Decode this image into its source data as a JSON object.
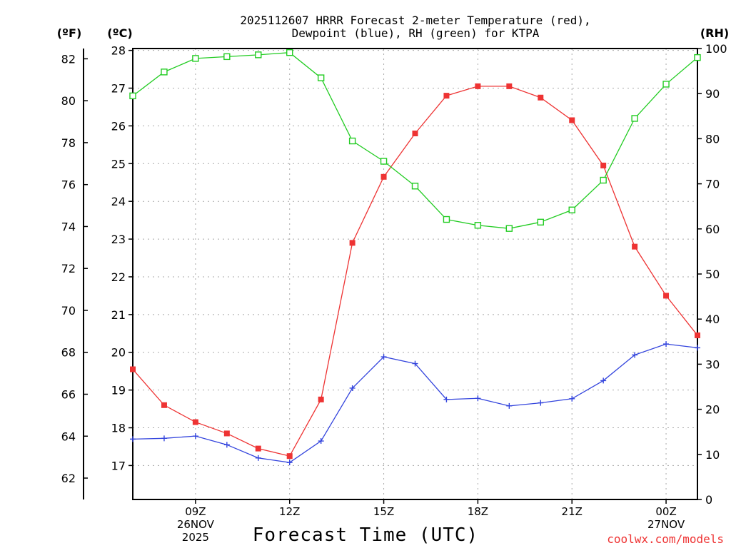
{
  "chart_data": {
    "type": "line",
    "title": [
      "2025112607 HRRR Forecast 2-meter Temperature (red),",
      "Dewpoint (blue), RH (green) for KTPA"
    ],
    "xlabel": "Forecast Time (UTC)",
    "credit": "coolwx.com/models",
    "units": {
      "fahrenheit": "(ºF)",
      "celsius": "(ºC)",
      "rh": "(RH)"
    },
    "x_hours": [
      7,
      8,
      9,
      10,
      11,
      12,
      13,
      14,
      15,
      16,
      17,
      18,
      19,
      20,
      21,
      22,
      23,
      24,
      25
    ],
    "xlim": [
      7,
      25
    ],
    "x_ticks": [
      {
        "hour": 9,
        "lines": [
          "09Z",
          "26NOV",
          "2025"
        ]
      },
      {
        "hour": 12,
        "lines": [
          "12Z"
        ]
      },
      {
        "hour": 15,
        "lines": [
          "15Z"
        ]
      },
      {
        "hour": 18,
        "lines": [
          "18Z"
        ]
      },
      {
        "hour": 21,
        "lines": [
          "21Z"
        ]
      },
      {
        "hour": 24,
        "lines": [
          "00Z",
          "27NOV"
        ]
      }
    ],
    "celsius_axis": {
      "ylim": [
        16.1,
        28.05
      ],
      "ticks": [
        17,
        18,
        19,
        20,
        21,
        22,
        23,
        24,
        25,
        26,
        27,
        28
      ]
    },
    "fahrenheit_axis": {
      "ticks": [
        62,
        64,
        66,
        68,
        70,
        72,
        74,
        76,
        78,
        80,
        82
      ]
    },
    "rh_axis": {
      "ylim": [
        0,
        100
      ],
      "ticks": [
        0,
        10,
        20,
        30,
        40,
        50,
        60,
        70,
        80,
        90,
        100
      ]
    },
    "series": [
      {
        "name": "2-meter Temperature",
        "unit": "C",
        "axis": "celsius",
        "color": "#ee3333",
        "marker": "filled-square",
        "values": [
          19.55,
          18.6,
          18.15,
          17.85,
          17.45,
          17.25,
          18.75,
          22.9,
          24.65,
          25.8,
          26.8,
          27.05,
          27.05,
          26.75,
          26.15,
          24.95,
          22.8,
          21.5,
          20.45
        ]
      },
      {
        "name": "Dewpoint",
        "unit": "C",
        "axis": "celsius",
        "color": "#3344dd",
        "marker": "plus",
        "values": [
          17.7,
          17.72,
          17.78,
          17.55,
          17.2,
          17.08,
          17.65,
          19.05,
          19.88,
          19.7,
          18.75,
          18.78,
          18.58,
          18.66,
          18.77,
          19.25,
          19.93,
          20.22,
          20.12
        ]
      },
      {
        "name": "RH",
        "unit": "%",
        "axis": "rh",
        "color": "#22cc22",
        "marker": "open-square",
        "values": [
          89.5,
          94.8,
          97.8,
          98.2,
          98.6,
          99.1,
          93.5,
          79.5,
          75,
          69.5,
          62.1,
          60.8,
          60.1,
          61.5,
          64.2,
          70.8,
          84.5,
          92.1,
          98
        ]
      }
    ]
  }
}
